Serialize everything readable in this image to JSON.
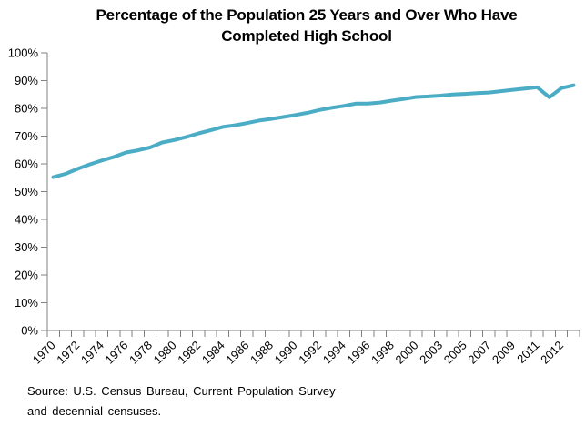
{
  "title_line1": "Percentage of the Population 25 Years and Over Who Have",
  "title_line2": "Completed High School",
  "source": {
    "line1": "Source: U.S. Census Bureau, Current Population Survey",
    "line2": "and decennial censuses."
  },
  "chart_data": {
    "type": "line",
    "title": "Percentage of the Population 25 Years and Over Who Have Completed High School",
    "xlabel": "",
    "ylabel": "",
    "ylim": [
      0,
      100
    ],
    "grid": false,
    "legend": false,
    "line_color": "#4BACC6",
    "axis_color": "#808080",
    "text_color": "#000000",
    "y_tick_labels": [
      "0%",
      "10%",
      "20%",
      "30%",
      "40%",
      "50%",
      "60%",
      "70%",
      "80%",
      "90%",
      "100%"
    ],
    "x_tick_labels": [
      "1970",
      "1972",
      "1974",
      "1976",
      "1978",
      "1980",
      "1982",
      "1984",
      "1986",
      "1988",
      "1990",
      "1992",
      "1994",
      "1996",
      "1998",
      "2000",
      "2003",
      "2005",
      "2007",
      "2009",
      "2011",
      "2012"
    ],
    "values": [
      55.2,
      56.4,
      58.2,
      59.8,
      61.2,
      62.5,
      64.1,
      64.9,
      65.9,
      67.7,
      68.6,
      69.7,
      71.0,
      72.1,
      73.3,
      73.9,
      74.7,
      75.6,
      76.2,
      76.9,
      77.6,
      78.4,
      79.4,
      80.2,
      80.9,
      81.7,
      81.7,
      82.1,
      82.8,
      83.4,
      84.1,
      84.3,
      84.6,
      85.0,
      85.2,
      85.5,
      85.7,
      86.2,
      86.7,
      87.1,
      87.6,
      84.0,
      87.3,
      88.3
    ]
  }
}
